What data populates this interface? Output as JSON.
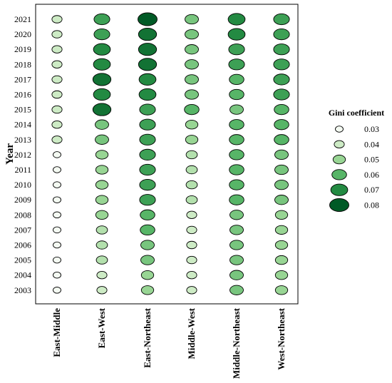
{
  "chart_data": {
    "type": "bubble",
    "ylabel": "Year",
    "legend_title": "Gini coefficient",
    "legend_position": "right",
    "categories": [
      "East-Middle",
      "East-West",
      "East-Northeast",
      "Middle-West",
      "Middle-Northeast",
      "West-Northeast"
    ],
    "years": [
      "2021",
      "2020",
      "2019",
      "2018",
      "2017",
      "2016",
      "2015",
      "2014",
      "2013",
      "2012",
      "2011",
      "2010",
      "2009",
      "2008",
      "2007",
      "2006",
      "2005",
      "2004",
      "2003"
    ],
    "legend": [
      {
        "label": "0.03",
        "value": 0.03
      },
      {
        "label": "0.04",
        "value": 0.04
      },
      {
        "label": "0.05",
        "value": 0.05
      },
      {
        "label": "0.06",
        "value": 0.06
      },
      {
        "label": "0.07",
        "value": 0.07
      },
      {
        "label": "0.08",
        "value": 0.08
      }
    ],
    "colors": {
      "0.03": "#f4faf2",
      "0.04": "#cdebc5",
      "0.05": "#98d594",
      "0.06": "#57b567",
      "0.07": "#238a42",
      "0.08": "#005a26"
    },
    "series": [
      {
        "name": "East-Middle",
        "values": [
          0.04,
          0.04,
          0.04,
          0.04,
          0.04,
          0.04,
          0.04,
          0.04,
          0.04,
          0.03,
          0.03,
          0.03,
          0.03,
          0.03,
          0.03,
          0.03,
          0.03,
          0.03,
          0.03
        ]
      },
      {
        "name": "East-West",
        "values": [
          0.065,
          0.065,
          0.07,
          0.07,
          0.075,
          0.07,
          0.075,
          0.055,
          0.055,
          0.05,
          0.05,
          0.05,
          0.05,
          0.05,
          0.045,
          0.045,
          0.045,
          0.04,
          0.04
        ]
      },
      {
        "name": "East-Northeast",
        "values": [
          0.08,
          0.075,
          0.075,
          0.075,
          0.07,
          0.07,
          0.065,
          0.065,
          0.065,
          0.065,
          0.065,
          0.065,
          0.065,
          0.06,
          0.06,
          0.055,
          0.055,
          0.05,
          0.05
        ]
      },
      {
        "name": "Middle-West",
        "values": [
          0.055,
          0.055,
          0.055,
          0.055,
          0.055,
          0.055,
          0.06,
          0.05,
          0.05,
          0.045,
          0.045,
          0.045,
          0.045,
          0.04,
          0.04,
          0.04,
          0.04,
          0.04,
          0.04
        ]
      },
      {
        "name": "Middle-Northeast",
        "values": [
          0.07,
          0.07,
          0.065,
          0.065,
          0.06,
          0.06,
          0.055,
          0.06,
          0.06,
          0.06,
          0.06,
          0.06,
          0.06,
          0.055,
          0.055,
          0.055,
          0.055,
          0.055,
          0.055
        ]
      },
      {
        "name": "West-Northeast",
        "values": [
          0.065,
          0.065,
          0.065,
          0.065,
          0.065,
          0.065,
          0.06,
          0.06,
          0.06,
          0.055,
          0.055,
          0.055,
          0.055,
          0.05,
          0.05,
          0.05,
          0.05,
          0.05,
          0.05
        ]
      }
    ]
  }
}
